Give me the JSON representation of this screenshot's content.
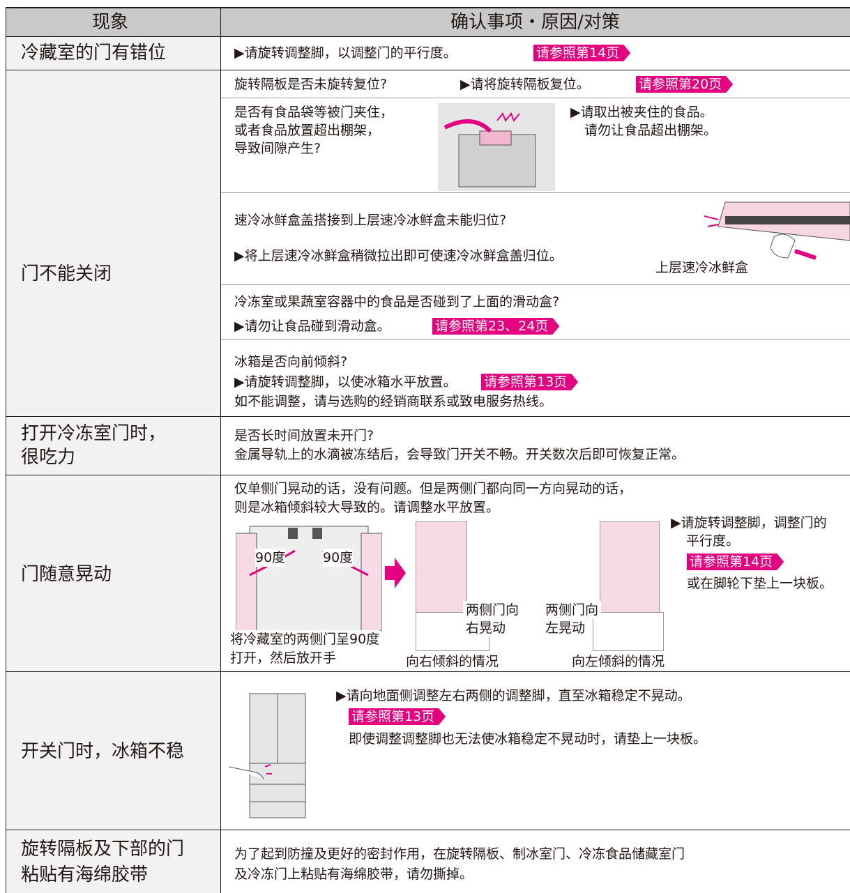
{
  "header": {
    "symptom": "现象",
    "check": "确认事项・原因/对策"
  },
  "rows": [
    {
      "symptom": "冷藏室的门有错位",
      "action": "▶请旋转调整脚，以调整门的平行度。",
      "ref": "请参照第14页"
    },
    {
      "symptom": "门不能关闭",
      "items": [
        {
          "question": "旋转隔板是否未旋转复位?",
          "action": "▶请将旋转隔板复位。",
          "ref": "请参照第20页"
        },
        {
          "question": [
            "是否有食品袋等被门夹住，",
            "或者食品放置超出棚架，",
            "导致间隙产生?"
          ],
          "action": [
            "▶请取出被夹住的食品。",
            "请勿让食品超出棚架。"
          ]
        },
        {
          "question": "速冷冰鲜盒盖搭接到上层速冷冰鲜盒未能归位?",
          "action": "▶将上层速冷冰鲜盒稍微拉出即可使速冷冰鲜盒盖归位。",
          "figure_label": "上层速冷冰鲜盒"
        },
        {
          "question": "冷冻室或果蔬室容器中的食品是否碰到了上面的滑动盒?",
          "action": "▶请勿让食品碰到滑动盒。",
          "ref": "请参照第23、24页"
        },
        {
          "question": "冰箱是否向前倾斜?",
          "action": "▶请旋转调整脚，以使冰箱水平放置。",
          "ref": "请参照第13页",
          "note": "如不能调整，请与选购的经销商联系或致电服务热线。"
        }
      ]
    },
    {
      "symptom": [
        "打开冷冻室门时，",
        "很吃力"
      ],
      "lines": [
        "是否长时间放置未开门?",
        "金属导轨上的水滴被冻结后，会导致门开关不畅。开关数次后即可恢复正常。"
      ]
    },
    {
      "symptom": "门随意晃动",
      "lines": [
        "仅单侧门晃动的话，没有问题。但是两侧门都向同一方向晃动的话，",
        "则是冰箱倾斜较大导致的。请调整水平放置。"
      ],
      "angle_label": "90度",
      "caption": [
        "将冷藏室的两侧门呈90度",
        "打开，然后放开手"
      ],
      "right_tilt": {
        "label": [
          "两侧门向",
          "右晃动"
        ],
        "caption": "向右倾斜的情况"
      },
      "left_tilt": {
        "label": [
          "两侧门向",
          "左晃动"
        ],
        "caption": "向左倾斜的情况"
      },
      "action": [
        "▶请旋转调整脚，调整门的",
        "平行度。"
      ],
      "ref": "请参照第14页",
      "note": "或在脚轮下垫上一块板。"
    },
    {
      "symptom": "开关门时，冰箱不稳",
      "action": "▶请向地面侧调整左右两侧的调整脚，直至冰箱稳定不晃动。",
      "ref": "请参照第13页",
      "note": "即使调整调整脚也无法使冰箱稳定不晃动时，请垫上一块板。"
    },
    {
      "symptom": [
        "旋转隔板及下部的门",
        "粘贴有海绵胶带"
      ],
      "lines": [
        "为了起到防撞及更好的密封作用，在旋转隔板、制冰室门、冷冻食品储藏室门",
        "及冷冻门上粘贴有海绵胶带，请勿撕掉。"
      ]
    }
  ]
}
